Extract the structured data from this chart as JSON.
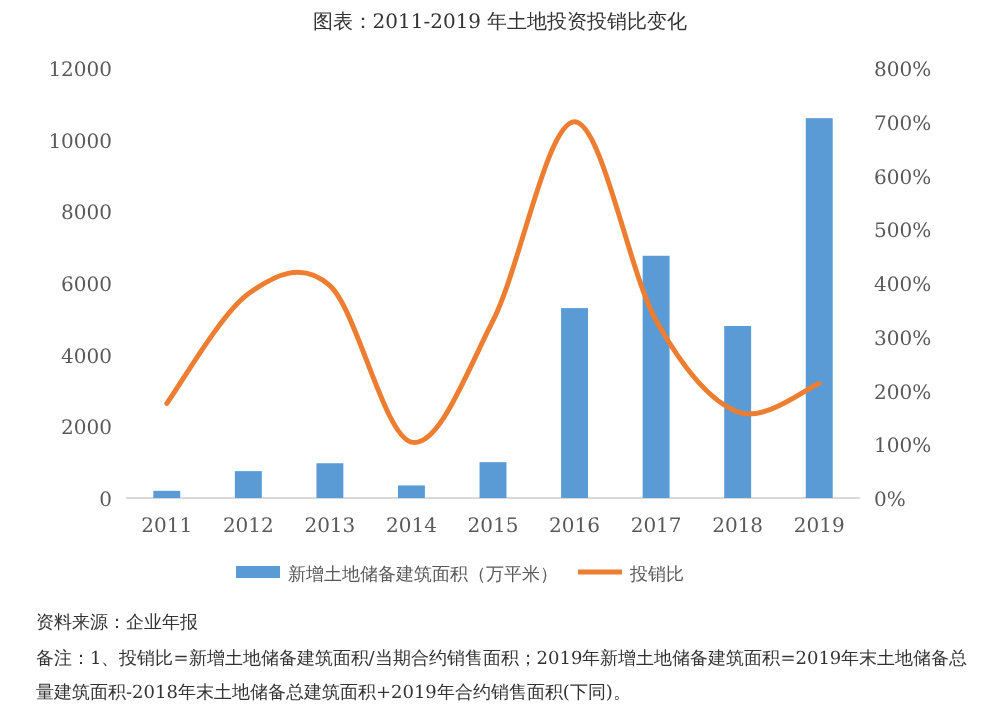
{
  "chart_data": {
    "type": "bar",
    "title": "图表：2011-2019 年土地投资投销比变化",
    "categories": [
      "2011",
      "2012",
      "2013",
      "2014",
      "2015",
      "2016",
      "2017",
      "2018",
      "2019"
    ],
    "series": [
      {
        "name": "新增土地储备建筑面积（万平米）",
        "color": "#5b9bd5",
        "values": [
          200,
          750,
          970,
          350,
          1000,
          5300,
          6760,
          4800,
          10600
        ]
      },
      {
        "name": "投销比",
        "type": "line",
        "axis": "y2",
        "color": "#ed7d31",
        "values": [
          176,
          380,
          395,
          104,
          330,
          700,
          330,
          160,
          213
        ]
      }
    ],
    "ylim": [
      0,
      12000
    ],
    "yticks": [
      0,
      2000,
      4000,
      6000,
      8000,
      10000,
      12000
    ],
    "y2lim": [
      0,
      800
    ],
    "y2ticks": [
      {
        "value": 0,
        "label": "0%"
      },
      {
        "value": 100,
        "label": "100%"
      },
      {
        "value": 200,
        "label": "200%"
      },
      {
        "value": 300,
        "label": "300%"
      },
      {
        "value": 400,
        "label": "400%"
      },
      {
        "value": 500,
        "label": "500%"
      },
      {
        "value": 600,
        "label": "600%"
      },
      {
        "value": 700,
        "label": "700%"
      },
      {
        "value": 800,
        "label": "800%"
      }
    ],
    "legend": "bottom",
    "annotations": [
      "资料来源：企业年报",
      "备注：1、投销比=新增土地储备建筑面积/当期合约销售面积；2019年新增土地储备建筑面积=2019年末土地储备总量建筑面积-2018年末土地储备总建筑面积+2019年合约销售面积(下同)。"
    ]
  }
}
